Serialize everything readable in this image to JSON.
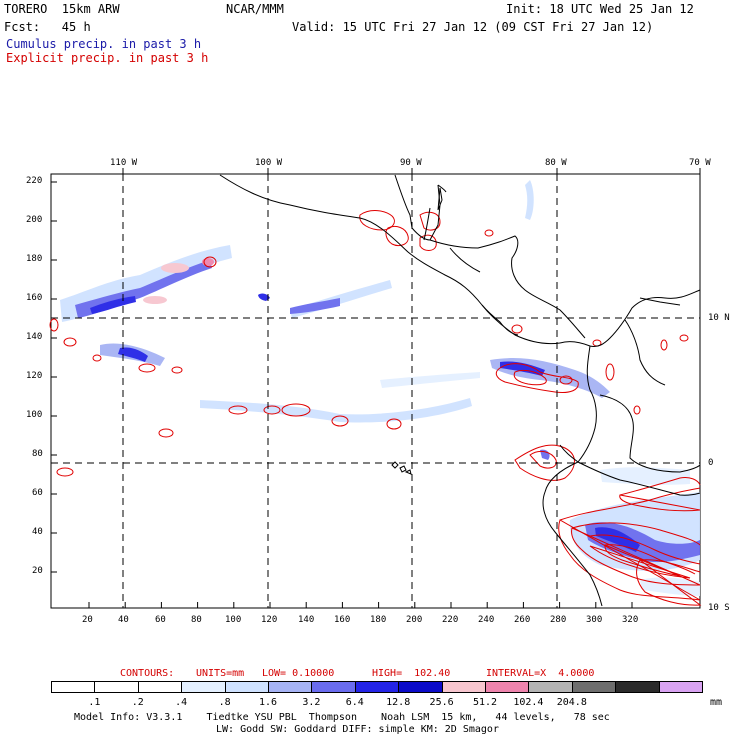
{
  "header": {
    "model": "TORERO  15km ARW",
    "org": "NCAR/MMM",
    "init": "Init: 18 UTC Wed 25 Jan 12",
    "fcst": "Fcst:   45 h",
    "valid": "Valid: 15 UTC Fri 27 Jan 12 (09 CST Fri 27 Jan 12)",
    "cumulus": "Cumulus precip. in past 3 h",
    "explicit": "Explicit precip. in past 3 h"
  },
  "map": {
    "lon_labels": [
      "110 W",
      "100 W",
      "90 W",
      "80 W",
      "70 W"
    ],
    "lat_labels": [
      "10 N",
      "0",
      "10 S"
    ],
    "y_ticks": [
      "220",
      "200",
      "180",
      "160",
      "140",
      "120",
      "100",
      "80",
      "60",
      "40",
      "20"
    ],
    "x_ticks": [
      "20",
      "40",
      "60",
      "80",
      "100",
      "120",
      "140",
      "160",
      "180",
      "200",
      "220",
      "240",
      "260",
      "280",
      "300",
      "320"
    ]
  },
  "contours": {
    "label": "CONTOURS:",
    "units": "UNITS=mm",
    "low": "LOW= 0.10000",
    "high": "HIGH=  102.40",
    "interval": "INTERVAL=X  4.0000"
  },
  "legend": {
    "thresholds": [
      ".1",
      ".2",
      ".4",
      ".8",
      "1.6",
      "3.2",
      "6.4",
      "12.8",
      "25.6",
      "51.2",
      "102.4",
      "204.8"
    ],
    "colors": [
      "#ffffff",
      "#ffffff",
      "#ffffff",
      "#e4f0ff",
      "#cfe2ff",
      "#a6b3f4",
      "#6a6cee",
      "#2424e6",
      "#0b0bc8",
      "#f7c6cf",
      "#ee84ad",
      "#b3b3b3",
      "#6e6e6e",
      "#2b2b2b",
      "#d9a3f2"
    ],
    "unit": "mm"
  },
  "footer": {
    "line1": "Model Info: V3.3.1    Tiedtke YSU PBL  Thompson    Noah LSM  15 km,   44 levels,   78 sec",
    "line2": "LW: Godd SW: Goddard DIFF: simple KM: 2D Smagor"
  }
}
